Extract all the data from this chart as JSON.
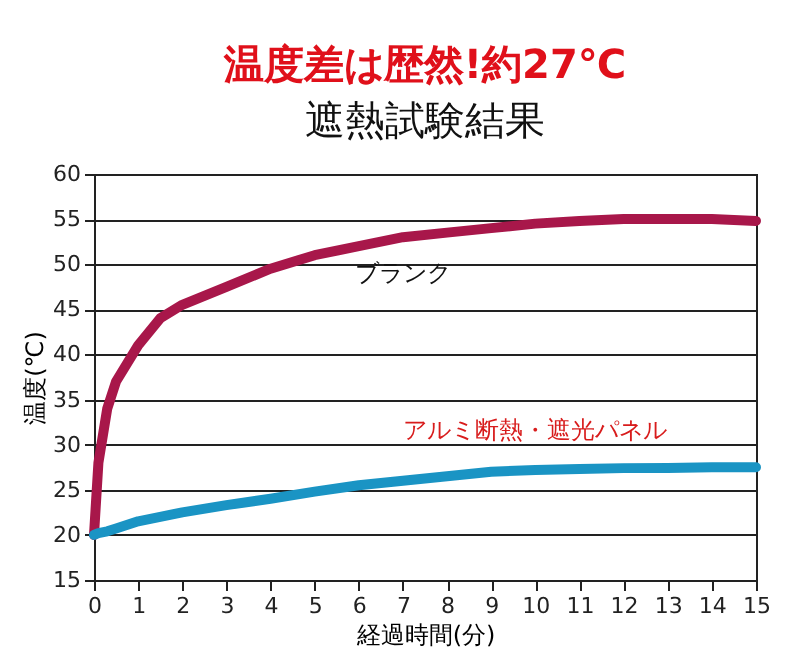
{
  "chart_data": {
    "type": "line",
    "title": "温度差は歴然!約27℃",
    "subtitle": "遮熱試験結果",
    "xlabel": "経過時間(分)",
    "ylabel": "温度(℃)",
    "x": [
      0,
      0.1,
      0.3,
      0.5,
      1,
      1.5,
      2,
      3,
      4,
      5,
      6,
      7,
      8,
      9,
      10,
      11,
      12,
      13,
      14,
      15
    ],
    "series": [
      {
        "name": "ブランク",
        "color": "#a8174a",
        "values": [
          20,
          28,
          34,
          37,
          41,
          44,
          45.5,
          47.5,
          49.5,
          51,
          52,
          53,
          53.5,
          54,
          54.5,
          54.8,
          55,
          55,
          55,
          54.8
        ]
      },
      {
        "name": "アルミ断熱・遮光パネル",
        "color": "#1a94c4",
        "values": [
          20,
          20.2,
          20.4,
          20.7,
          21.5,
          22,
          22.5,
          23.3,
          24,
          24.8,
          25.5,
          26,
          26.5,
          27,
          27.2,
          27.3,
          27.4,
          27.4,
          27.5,
          27.5
        ]
      }
    ],
    "xlim": [
      0,
      15
    ],
    "xticks": [
      0,
      1,
      2,
      3,
      4,
      5,
      6,
      7,
      8,
      9,
      10,
      11,
      12,
      13,
      14,
      15
    ],
    "ylim": [
      15,
      60
    ],
    "yticks": [
      15,
      20,
      25,
      30,
      35,
      40,
      45,
      50,
      55,
      60
    ],
    "grid": "y",
    "marker": "none",
    "line_style": "solid"
  }
}
